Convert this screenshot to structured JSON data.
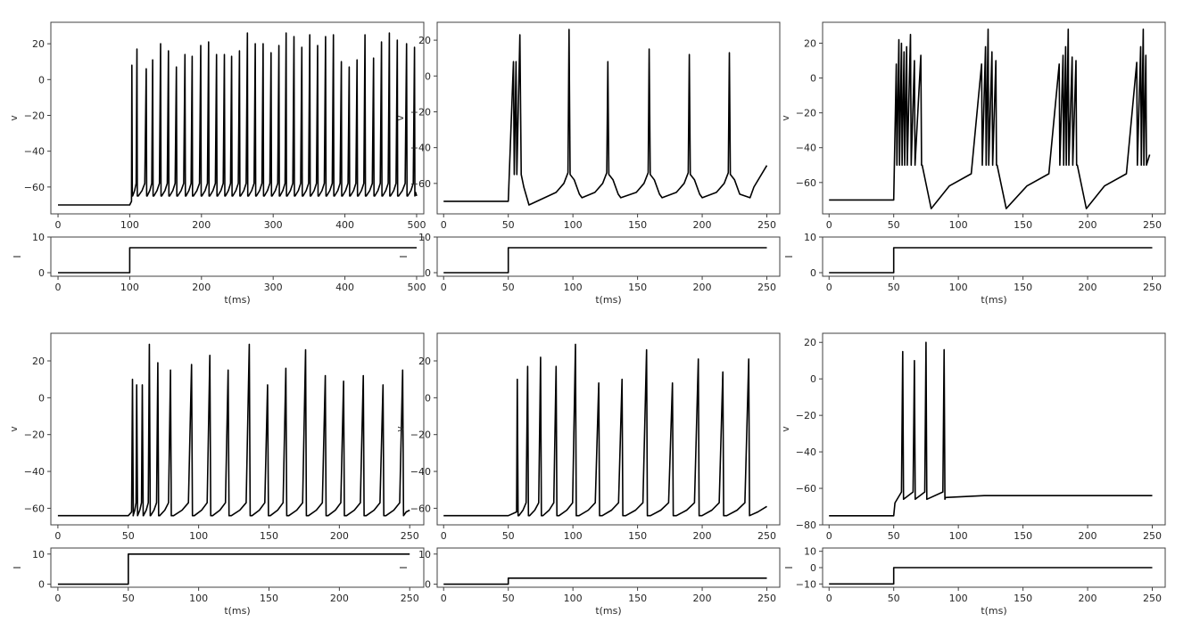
{
  "chart_data": [
    {
      "type": "line",
      "panels": [
        {
          "ylabel": "v",
          "xlim": [
            -10,
            510
          ],
          "ylim": [
            -75,
            32
          ],
          "yticks": [
            20,
            0,
            -20,
            -40,
            -60
          ],
          "ytick_labels": [
            "20",
            "0",
            "−20",
            "−40",
            "−60"
          ],
          "xticks": [
            0,
            100,
            200,
            300,
            400,
            500
          ],
          "xtick_labels": [
            "0",
            "100",
            "200",
            "300",
            "400",
            "500"
          ],
          "series": {
            "x": [
              0,
              100,
              500
            ],
            "rest": -70,
            "trough": -65,
            "start": 100,
            "end": 500,
            "spike_times": [
              103,
              110,
              123,
              132,
              143,
              154,
              165,
              177,
              187,
              199,
              210,
              221,
              232,
              242,
              253,
              264,
              275,
              286,
              297,
              308,
              318,
              329,
              340,
              351,
              362,
              373,
              384,
              395,
              406,
              417,
              428,
              440,
              451,
              462,
              473,
              486,
              497
            ],
            "spike_peaks": [
              8,
              17,
              6,
              11,
              20,
              16,
              7,
              14,
              13,
              19,
              21,
              14,
              14,
              13,
              16,
              26,
              20,
              20,
              15,
              19,
              26,
              24,
              18,
              25,
              19,
              24,
              25,
              10,
              7,
              11,
              25,
              12,
              21,
              26,
              22,
              20,
              18
            ]
          }
        },
        {
          "ylabel": "I",
          "xlim": [
            -10,
            510
          ],
          "ylim": [
            -1,
            10
          ],
          "yticks": [
            10,
            0
          ],
          "ytick_labels": [
            "10",
            "0"
          ],
          "xticks": [
            0,
            100,
            200,
            300,
            400,
            500
          ],
          "xtick_labels": [
            "0",
            "100",
            "200",
            "300",
            "400",
            "500"
          ],
          "xlabel": "t(ms)",
          "series": {
            "x": [
              0,
              100,
              100,
              500
            ],
            "y": [
              0,
              0,
              7,
              7
            ]
          }
        }
      ]
    },
    {
      "type": "line",
      "panels": [
        {
          "ylabel": "v",
          "xlim": [
            -5,
            260
          ],
          "ylim": [
            -77,
            30
          ],
          "yticks": [
            20,
            0,
            -20,
            -40,
            -60
          ],
          "ytick_labels": [
            "20",
            "0",
            "−20",
            "−40",
            "−60"
          ],
          "xticks": [
            0,
            50,
            100,
            150,
            200,
            250
          ],
          "xtick_labels": [
            "0",
            "50",
            "100",
            "150",
            "200",
            "250"
          ],
          "series": {
            "rest": -70,
            "start": 50,
            "end": 250,
            "spike_times": [
              54,
              56,
              59,
              97,
              127,
              159,
              190,
              221
            ],
            "spike_peaks": [
              8,
              8,
              23,
              26,
              8,
              15,
              12,
              13
            ],
            "trough": -72,
            "end_value": -50
          }
        },
        {
          "ylabel": "I",
          "xlim": [
            -5,
            260
          ],
          "ylim": [
            -1,
            10
          ],
          "yticks": [
            10,
            0
          ],
          "ytick_labels": [
            "10",
            "0"
          ],
          "xticks": [
            0,
            50,
            100,
            150,
            200,
            250
          ],
          "xtick_labels": [
            "0",
            "50",
            "100",
            "150",
            "200",
            "250"
          ],
          "xlabel": "t(ms)",
          "series": {
            "x": [
              0,
              50,
              50,
              250
            ],
            "y": [
              0,
              0,
              7,
              7
            ]
          }
        }
      ]
    },
    {
      "type": "line",
      "panels": [
        {
          "ylabel": "v",
          "xlim": [
            -5,
            260
          ],
          "ylim": [
            -78,
            32
          ],
          "yticks": [
            20,
            0,
            -20,
            -40,
            -60
          ],
          "ytick_labels": [
            "20",
            "0",
            "−20",
            "−40",
            "−60"
          ],
          "xticks": [
            0,
            50,
            100,
            150,
            200,
            250
          ],
          "xtick_labels": [
            "0",
            "50",
            "100",
            "150",
            "200",
            "250"
          ],
          "series": {
            "rest": -70,
            "start": 50,
            "end": 250,
            "bursts": [
              {
                "times": [
                  52,
                  54,
                  56,
                  58,
                  60,
                  63,
                  66,
                  71
                ],
                "peaks": [
                  8,
                  22,
                  20,
                  15,
                  18,
                  25,
                  10,
                  13
                ]
              },
              {
                "times": [
                  118,
                  121,
                  123,
                  126,
                  129
                ],
                "peaks": [
                  8,
                  18,
                  28,
                  15,
                  10
                ]
              },
              {
                "times": [
                  178,
                  181,
                  183,
                  185,
                  188,
                  191
                ],
                "peaks": [
                  8,
                  13,
                  18,
                  28,
                  12,
                  10
                ]
              },
              {
                "times": [
                  238,
                  241,
                  243,
                  245,
                  248
                ],
                "peaks": [
                  9,
                  18,
                  28,
                  13,
                  -44
                ]
              }
            ],
            "inter_burst_floor": -50,
            "trough": -75
          }
        },
        {
          "ylabel": "I",
          "xlim": [
            -5,
            260
          ],
          "ylim": [
            -1,
            10
          ],
          "yticks": [
            10,
            0
          ],
          "ytick_labels": [
            "10",
            "0"
          ],
          "xticks": [
            0,
            50,
            100,
            150,
            200,
            250
          ],
          "xtick_labels": [
            "0",
            "50",
            "100",
            "150",
            "200",
            "250"
          ],
          "xlabel": "t(ms)",
          "series": {
            "x": [
              0,
              50,
              50,
              250
            ],
            "y": [
              0,
              0,
              7,
              7
            ]
          }
        }
      ]
    },
    {
      "type": "line",
      "panels": [
        {
          "ylabel": "v",
          "xlim": [
            -5,
            260
          ],
          "ylim": [
            -69,
            35
          ],
          "yticks": [
            20,
            0,
            -20,
            -40,
            -60
          ],
          "ytick_labels": [
            "20",
            "0",
            "−20",
            "−40",
            "−60"
          ],
          "xticks": [
            0,
            50,
            100,
            150,
            200,
            250
          ],
          "xtick_labels": [
            "0",
            "50",
            "100",
            "150",
            "200",
            "250"
          ],
          "series": {
            "rest": -64,
            "trough": -64,
            "start": 50,
            "end": 250,
            "spike_times": [
              53,
              56,
              60,
              65,
              71,
              80,
              95,
              108,
              121,
              136,
              149,
              162,
              176,
              190,
              203,
              217,
              231,
              245
            ],
            "spike_peaks": [
              10,
              7,
              7,
              29,
              19,
              15,
              18,
              23,
              15,
              29,
              7,
              16,
              26,
              12,
              9,
              12,
              7,
              15
            ],
            "end_value": -61
          }
        },
        {
          "ylabel": "I",
          "xlim": [
            -5,
            260
          ],
          "ylim": [
            -1,
            12
          ],
          "yticks": [
            10,
            0
          ],
          "ytick_labels": [
            "10",
            "0"
          ],
          "xticks": [
            0,
            50,
            100,
            150,
            200,
            250
          ],
          "xtick_labels": [
            "0",
            "50",
            "100",
            "150",
            "200",
            "250"
          ],
          "xlabel": "t(ms)",
          "series": {
            "x": [
              0,
              50,
              50,
              250
            ],
            "y": [
              0,
              0,
              10,
              10
            ]
          }
        }
      ]
    },
    {
      "type": "line",
      "panels": [
        {
          "ylabel": "v",
          "xlim": [
            -5,
            260
          ],
          "ylim": [
            -69,
            35
          ],
          "yticks": [
            20,
            0,
            -20,
            -40,
            -60
          ],
          "ytick_labels": [
            "20",
            "0",
            "−20",
            "−40",
            "−60"
          ],
          "xticks": [
            0,
            50,
            100,
            150,
            200,
            250
          ],
          "xtick_labels": [
            "0",
            "50",
            "100",
            "150",
            "200",
            "250"
          ],
          "series": {
            "rest": -64,
            "trough": -64,
            "start": 50,
            "end": 250,
            "spike_times": [
              57,
              65,
              75,
              87,
              102,
              120,
              138,
              157,
              177,
              197,
              216,
              236
            ],
            "spike_peaks": [
              10,
              17,
              22,
              17,
              29,
              8,
              10,
              26,
              8,
              21,
              14,
              21
            ],
            "end_value": -59
          }
        },
        {
          "ylabel": "I",
          "xlim": [
            -5,
            260
          ],
          "ylim": [
            -1,
            12
          ],
          "yticks": [
            10,
            0
          ],
          "ytick_labels": [
            "10",
            "0"
          ],
          "xticks": [
            0,
            50,
            100,
            150,
            200,
            250
          ],
          "xtick_labels": [
            "0",
            "50",
            "100",
            "150",
            "200",
            "250"
          ],
          "xlabel": "t(ms)",
          "series": {
            "x": [
              0,
              50,
              50,
              250
            ],
            "y": [
              0,
              0,
              2,
              2
            ]
          }
        }
      ]
    },
    {
      "type": "line",
      "panels": [
        {
          "ylabel": "v",
          "xlim": [
            -5,
            260
          ],
          "ylim": [
            -80,
            25
          ],
          "yticks": [
            20,
            0,
            -20,
            -40,
            -60,
            -80
          ],
          "ytick_labels": [
            "20",
            "0",
            "−20",
            "−40",
            "−60",
            "−80"
          ],
          "xticks": [
            0,
            50,
            100,
            150,
            200,
            250
          ],
          "xtick_labels": [
            "0",
            "50",
            "100",
            "150",
            "200",
            "250"
          ],
          "series": {
            "rest": -75,
            "trough": -64,
            "start": 50,
            "end": 250,
            "spike_times": [
              57,
              66,
              75,
              89
            ],
            "spike_peaks": [
              15,
              10,
              20,
              16
            ],
            "plateau": -64
          }
        },
        {
          "ylabel": "I",
          "xlim": [
            -5,
            260
          ],
          "ylim": [
            -12,
            12
          ],
          "yticks": [
            10,
            0,
            -10
          ],
          "ytick_labels": [
            "10",
            "0",
            "−10"
          ],
          "xticks": [
            0,
            50,
            100,
            150,
            200,
            250
          ],
          "xtick_labels": [
            "0",
            "50",
            "100",
            "150",
            "200",
            "250"
          ],
          "xlabel": "t(ms)",
          "series": {
            "x": [
              0,
              50,
              50,
              250
            ],
            "y": [
              -10,
              -10,
              0,
              0
            ]
          }
        }
      ]
    }
  ]
}
